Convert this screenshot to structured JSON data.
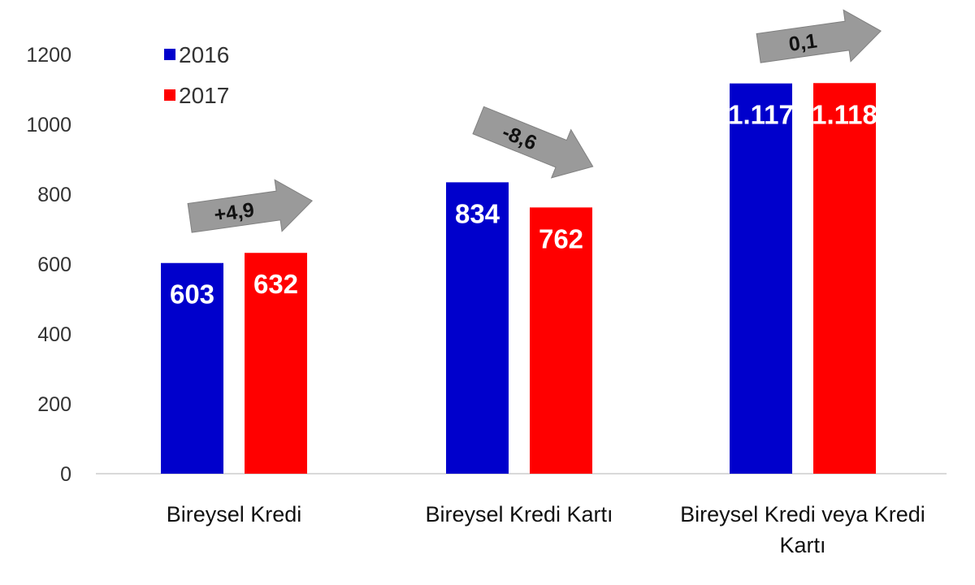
{
  "chart_data": {
    "type": "bar",
    "categories": [
      [
        "Bireysel Kredi"
      ],
      [
        "Bireysel Kredi Kartı"
      ],
      [
        "Bireysel Kredi veya Kredi",
        "Kartı"
      ]
    ],
    "series": [
      {
        "name": "2016",
        "values": [
          603,
          834,
          1117
        ],
        "labels": [
          "603",
          "834",
          "1.117"
        ],
        "color": "#0000cc"
      },
      {
        "name": "2017",
        "values": [
          632,
          762,
          1118
        ],
        "labels": [
          "632",
          "762",
          "1.118"
        ],
        "color": "#ff0000"
      }
    ],
    "changes": [
      "+4,9",
      "-8,6",
      "0,1"
    ],
    "change_directions": [
      "up",
      "down",
      "up"
    ],
    "ylim": [
      0,
      1200
    ],
    "yticks": [
      0,
      200,
      400,
      600,
      800,
      1000,
      1200
    ],
    "legend_position": "top-left",
    "grid": false,
    "arrow_color": "#9a9a9a"
  }
}
